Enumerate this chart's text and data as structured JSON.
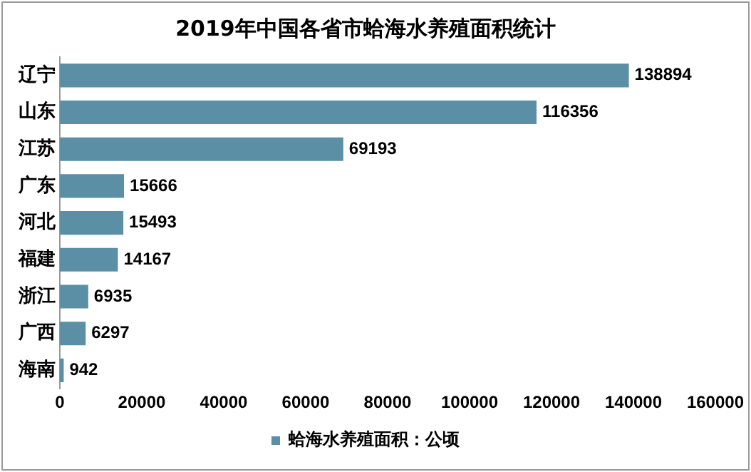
{
  "chart_data": {
    "type": "bar",
    "orientation": "horizontal",
    "title": "2019年中国各省市蛤海水养殖面积统计",
    "categories": [
      "辽宁",
      "山东",
      "江苏",
      "广东",
      "河北",
      "福建",
      "浙江",
      "广西",
      "海南"
    ],
    "series": [
      {
        "name": "蛤海水养殖面积：公顷",
        "color": "#5b8fa6",
        "values": [
          138894,
          116356,
          69193,
          15666,
          15493,
          14167,
          6935,
          6297,
          942
        ]
      }
    ],
    "xlim": [
      0,
      160000
    ],
    "xticks": [
      0,
      20000,
      40000,
      60000,
      80000,
      100000,
      120000,
      140000,
      160000
    ],
    "grid": false,
    "legend": "bottom",
    "data_labels": true
  }
}
